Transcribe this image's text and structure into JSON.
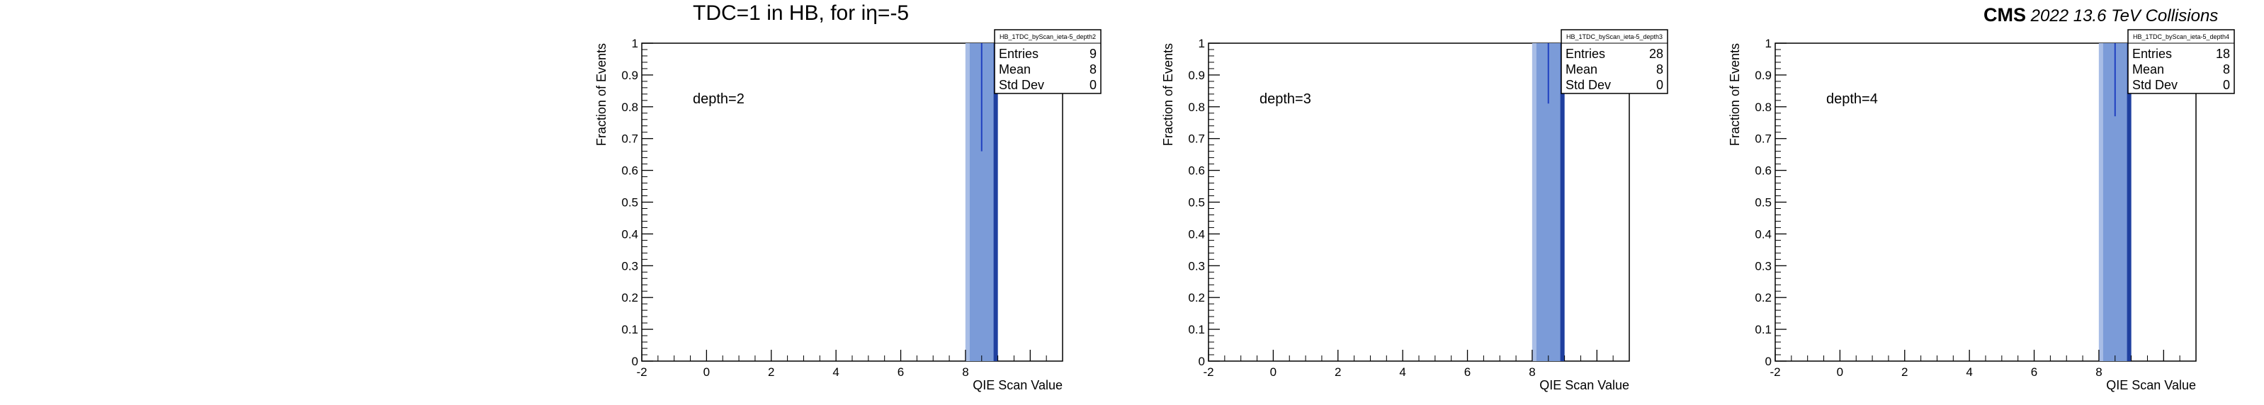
{
  "header": {
    "title": "TDC=1 in HB, for iη=-5",
    "cms_label": "CMS",
    "cms_sublabel": "2022 13.6 TeV Collisions"
  },
  "chart_data": [
    {
      "type": "bar",
      "hist_name": "HB_1TDC_byScan_ieta-5_depth2",
      "annotation": "depth=2",
      "xlabel": "QIE Scan Value",
      "ylabel": "Fraction of Events",
      "xlim": [
        -2,
        11
      ],
      "ylim": [
        0,
        1
      ],
      "x_ticks": [
        -2,
        0,
        2,
        4,
        6,
        8
      ],
      "y_ticks": [
        0,
        0.1,
        0.2,
        0.3,
        0.4,
        0.5,
        0.6,
        0.7,
        0.8,
        0.9,
        1
      ],
      "bins": [
        {
          "x_low": 8,
          "x_high": 9,
          "value": 1.0,
          "error_low": 0.66
        }
      ],
      "stats": {
        "Entries": "9",
        "Mean": "8",
        "Std Dev": "0"
      }
    },
    {
      "type": "bar",
      "hist_name": "HB_1TDC_byScan_ieta-5_depth3",
      "annotation": "depth=3",
      "xlabel": "QIE Scan Value",
      "ylabel": "Fraction of Events",
      "xlim": [
        -2,
        11
      ],
      "ylim": [
        0,
        1
      ],
      "x_ticks": [
        -2,
        0,
        2,
        4,
        6,
        8
      ],
      "y_ticks": [
        0,
        0.1,
        0.2,
        0.3,
        0.4,
        0.5,
        0.6,
        0.7,
        0.8,
        0.9,
        1
      ],
      "bins": [
        {
          "x_low": 8,
          "x_high": 9,
          "value": 1.0,
          "error_low": 0.81
        }
      ],
      "stats": {
        "Entries": "28",
        "Mean": "8",
        "Std Dev": "0"
      }
    },
    {
      "type": "bar",
      "hist_name": "HB_1TDC_byScan_ieta-5_depth4",
      "annotation": "depth=4",
      "xlabel": "QIE Scan Value",
      "ylabel": "Fraction of Events",
      "xlim": [
        -2,
        11
      ],
      "ylim": [
        0,
        1
      ],
      "x_ticks": [
        -2,
        0,
        2,
        4,
        6,
        8
      ],
      "y_ticks": [
        0,
        0.1,
        0.2,
        0.3,
        0.4,
        0.5,
        0.6,
        0.7,
        0.8,
        0.9,
        1
      ],
      "bins": [
        {
          "x_low": 8,
          "x_high": 9,
          "value": 1.0,
          "error_low": 0.77
        }
      ],
      "stats": {
        "Entries": "18",
        "Mean": "8",
        "Std Dev": "0"
      }
    }
  ],
  "colors": {
    "bar_fill": "#7b9bd8",
    "bar_edge": "#1f3f9f",
    "error_bar": "#2040c0",
    "axis": "#000000"
  }
}
